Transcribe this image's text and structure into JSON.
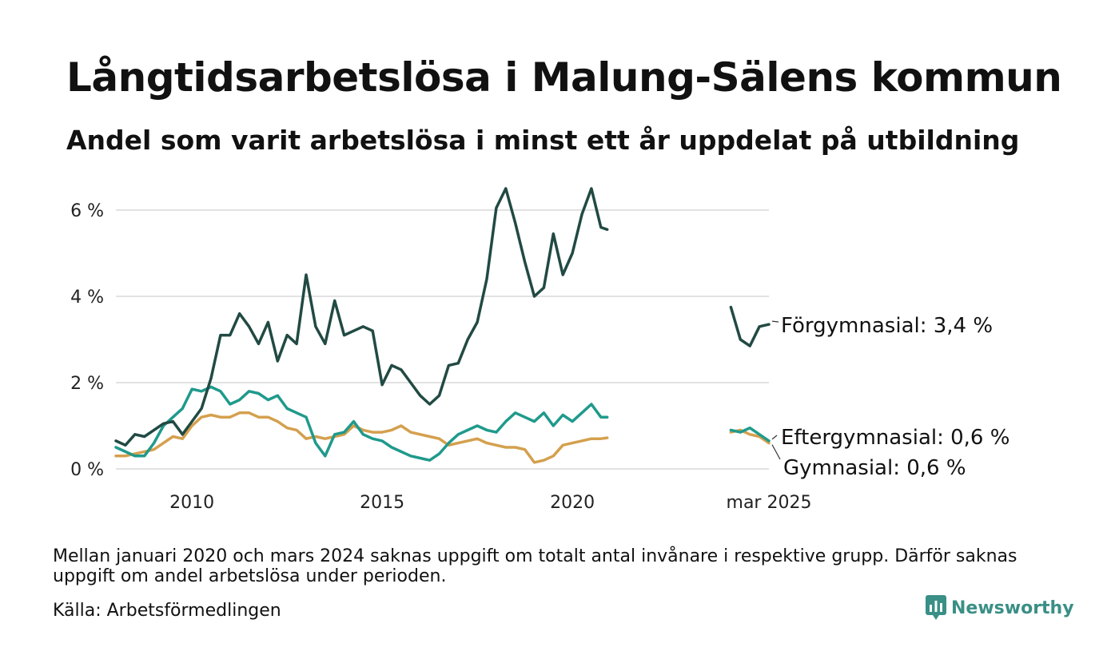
{
  "title": "Långtidsarbetslösa i Malung-Sälens kommun",
  "subtitle": "Andel som varit arbetslösa i minst ett år uppdelat på utbildning",
  "note": "Mellan januari 2020 och mars 2024 saknas uppgift om totalt antal invånare i respektive grupp. Därför saknas uppgift om andel arbetslösa under perioden.",
  "source": "Källa: Arbetsförmedlingen",
  "brand": {
    "name": "Newsworthy",
    "icon": "newsworthy-logo-icon",
    "color": "#3a8f86"
  },
  "chart_data": {
    "type": "line",
    "title": "Långtidsarbetslösa i Malung-Sälens kommun",
    "subtitle": "Andel som varit arbetslösa i minst ett år uppdelat på utbildning",
    "xlabel": "",
    "ylabel": "",
    "ylim": [
      0,
      6.5
    ],
    "y_ticks": [
      {
        "value": 0,
        "label": "0 %"
      },
      {
        "value": 2,
        "label": "2 %"
      },
      {
        "value": 4,
        "label": "4 %"
      },
      {
        "value": 6,
        "label": "6 %"
      }
    ],
    "x_ticks": [
      {
        "value": "2010-01",
        "label": "2010"
      },
      {
        "value": "2015-01",
        "label": "2015"
      },
      {
        "value": "2020-01",
        "label": "2020"
      },
      {
        "value": "2025-03",
        "label": "mar 2025"
      }
    ],
    "grid": true,
    "legend": "direct labels at line ends (right)",
    "series": [
      {
        "name": "Förgymnasial",
        "color": "#214a43",
        "end_label": "Förgymnasial: 3,4 %",
        "segments": [
          [
            [
              "2008-01",
              0.65
            ],
            [
              "2008-04",
              0.55
            ],
            [
              "2008-07",
              0.8
            ],
            [
              "2008-10",
              0.75
            ],
            [
              "2009-01",
              0.9
            ],
            [
              "2009-04",
              1.05
            ],
            [
              "2009-07",
              1.1
            ],
            [
              "2009-10",
              0.8
            ],
            [
              "2010-01",
              1.1
            ],
            [
              "2010-04",
              1.4
            ],
            [
              "2010-07",
              2.1
            ],
            [
              "2010-10",
              3.1
            ],
            [
              "2011-01",
              3.1
            ],
            [
              "2011-04",
              3.6
            ],
            [
              "2011-07",
              3.3
            ],
            [
              "2011-10",
              2.9
            ],
            [
              "2012-01",
              3.4
            ],
            [
              "2012-04",
              2.5
            ],
            [
              "2012-07",
              3.1
            ],
            [
              "2012-10",
              2.9
            ],
            [
              "2013-01",
              4.5
            ],
            [
              "2013-04",
              3.3
            ],
            [
              "2013-07",
              2.9
            ],
            [
              "2013-10",
              3.9
            ],
            [
              "2014-01",
              3.1
            ],
            [
              "2014-04",
              3.2
            ],
            [
              "2014-07",
              3.3
            ],
            [
              "2014-10",
              3.2
            ],
            [
              "2015-01",
              1.95
            ],
            [
              "2015-04",
              2.4
            ],
            [
              "2015-07",
              2.3
            ],
            [
              "2015-10",
              2.0
            ],
            [
              "2016-01",
              1.7
            ],
            [
              "2016-04",
              1.5
            ],
            [
              "2016-07",
              1.7
            ],
            [
              "2016-10",
              2.4
            ],
            [
              "2017-01",
              2.45
            ],
            [
              "2017-04",
              3.0
            ],
            [
              "2017-07",
              3.4
            ],
            [
              "2017-10",
              4.4
            ],
            [
              "2018-01",
              6.05
            ],
            [
              "2018-04",
              6.5
            ],
            [
              "2018-07",
              5.7
            ],
            [
              "2018-10",
              4.8
            ],
            [
              "2019-01",
              4.0
            ],
            [
              "2019-04",
              4.2
            ],
            [
              "2019-07",
              5.45
            ],
            [
              "2019-10",
              4.5
            ],
            [
              "2020-01",
              5.0
            ],
            [
              "2020-04",
              5.9
            ],
            [
              "2020-07",
              6.5
            ],
            [
              "2020-10",
              5.6
            ],
            [
              "2020-12",
              5.55
            ]
          ],
          [
            [
              "2024-03",
              3.75
            ],
            [
              "2024-06",
              3.0
            ],
            [
              "2024-09",
              2.85
            ],
            [
              "2024-12",
              3.3
            ],
            [
              "2025-03",
              3.35
            ]
          ]
        ]
      },
      {
        "name": "Eftergymnasial",
        "color": "#1f9a8c",
        "end_label": "Eftergymnasial: 0,6 %",
        "segments": [
          [
            [
              "2008-01",
              0.5
            ],
            [
              "2008-04",
              0.4
            ],
            [
              "2008-07",
              0.3
            ],
            [
              "2008-10",
              0.3
            ],
            [
              "2009-01",
              0.6
            ],
            [
              "2009-04",
              1.0
            ],
            [
              "2009-07",
              1.2
            ],
            [
              "2009-10",
              1.4
            ],
            [
              "2010-01",
              1.85
            ],
            [
              "2010-04",
              1.8
            ],
            [
              "2010-07",
              1.9
            ],
            [
              "2010-10",
              1.8
            ],
            [
              "2011-01",
              1.5
            ],
            [
              "2011-04",
              1.6
            ],
            [
              "2011-07",
              1.8
            ],
            [
              "2011-10",
              1.75
            ],
            [
              "2012-01",
              1.6
            ],
            [
              "2012-04",
              1.7
            ],
            [
              "2012-07",
              1.4
            ],
            [
              "2012-10",
              1.3
            ],
            [
              "2013-01",
              1.2
            ],
            [
              "2013-04",
              0.6
            ],
            [
              "2013-07",
              0.3
            ],
            [
              "2013-10",
              0.8
            ],
            [
              "2014-01",
              0.85
            ],
            [
              "2014-04",
              1.1
            ],
            [
              "2014-07",
              0.8
            ],
            [
              "2014-10",
              0.7
            ],
            [
              "2015-01",
              0.65
            ],
            [
              "2015-04",
              0.5
            ],
            [
              "2015-07",
              0.4
            ],
            [
              "2015-10",
              0.3
            ],
            [
              "2016-01",
              0.25
            ],
            [
              "2016-04",
              0.2
            ],
            [
              "2016-07",
              0.35
            ],
            [
              "2016-10",
              0.6
            ],
            [
              "2017-01",
              0.8
            ],
            [
              "2017-04",
              0.9
            ],
            [
              "2017-07",
              1.0
            ],
            [
              "2017-10",
              0.9
            ],
            [
              "2018-01",
              0.85
            ],
            [
              "2018-04",
              1.1
            ],
            [
              "2018-07",
              1.3
            ],
            [
              "2018-10",
              1.2
            ],
            [
              "2019-01",
              1.1
            ],
            [
              "2019-04",
              1.3
            ],
            [
              "2019-07",
              1.0
            ],
            [
              "2019-10",
              1.25
            ],
            [
              "2020-01",
              1.1
            ],
            [
              "2020-04",
              1.3
            ],
            [
              "2020-07",
              1.5
            ],
            [
              "2020-10",
              1.2
            ],
            [
              "2020-12",
              1.2
            ]
          ],
          [
            [
              "2024-03",
              0.9
            ],
            [
              "2024-06",
              0.85
            ],
            [
              "2024-09",
              0.95
            ],
            [
              "2024-12",
              0.8
            ],
            [
              "2025-03",
              0.65
            ]
          ]
        ]
      },
      {
        "name": "Gymnasial",
        "color": "#d4a04e",
        "end_label": "Gymnasial: 0,6 %",
        "segments": [
          [
            [
              "2008-01",
              0.3
            ],
            [
              "2008-04",
              0.3
            ],
            [
              "2008-07",
              0.35
            ],
            [
              "2008-10",
              0.4
            ],
            [
              "2009-01",
              0.45
            ],
            [
              "2009-04",
              0.6
            ],
            [
              "2009-07",
              0.75
            ],
            [
              "2009-10",
              0.7
            ],
            [
              "2010-01",
              1.0
            ],
            [
              "2010-04",
              1.2
            ],
            [
              "2010-07",
              1.25
            ],
            [
              "2010-10",
              1.2
            ],
            [
              "2011-01",
              1.2
            ],
            [
              "2011-04",
              1.3
            ],
            [
              "2011-07",
              1.3
            ],
            [
              "2011-10",
              1.2
            ],
            [
              "2012-01",
              1.2
            ],
            [
              "2012-04",
              1.1
            ],
            [
              "2012-07",
              0.95
            ],
            [
              "2012-10",
              0.9
            ],
            [
              "2013-01",
              0.7
            ],
            [
              "2013-04",
              0.75
            ],
            [
              "2013-07",
              0.7
            ],
            [
              "2013-10",
              0.75
            ],
            [
              "2014-01",
              0.8
            ],
            [
              "2014-04",
              1.0
            ],
            [
              "2014-07",
              0.9
            ],
            [
              "2014-10",
              0.85
            ],
            [
              "2015-01",
              0.85
            ],
            [
              "2015-04",
              0.9
            ],
            [
              "2015-07",
              1.0
            ],
            [
              "2015-10",
              0.85
            ],
            [
              "2016-01",
              0.8
            ],
            [
              "2016-04",
              0.75
            ],
            [
              "2016-07",
              0.7
            ],
            [
              "2016-10",
              0.55
            ],
            [
              "2017-01",
              0.6
            ],
            [
              "2017-04",
              0.65
            ],
            [
              "2017-07",
              0.7
            ],
            [
              "2017-10",
              0.6
            ],
            [
              "2018-01",
              0.55
            ],
            [
              "2018-04",
              0.5
            ],
            [
              "2018-07",
              0.5
            ],
            [
              "2018-10",
              0.45
            ],
            [
              "2019-01",
              0.15
            ],
            [
              "2019-04",
              0.2
            ],
            [
              "2019-07",
              0.3
            ],
            [
              "2019-10",
              0.55
            ],
            [
              "2020-01",
              0.6
            ],
            [
              "2020-04",
              0.65
            ],
            [
              "2020-07",
              0.7
            ],
            [
              "2020-10",
              0.7
            ],
            [
              "2020-12",
              0.72
            ]
          ],
          [
            [
              "2024-03",
              0.85
            ],
            [
              "2024-06",
              0.9
            ],
            [
              "2024-09",
              0.8
            ],
            [
              "2024-12",
              0.75
            ],
            [
              "2025-03",
              0.6
            ]
          ]
        ]
      }
    ]
  }
}
